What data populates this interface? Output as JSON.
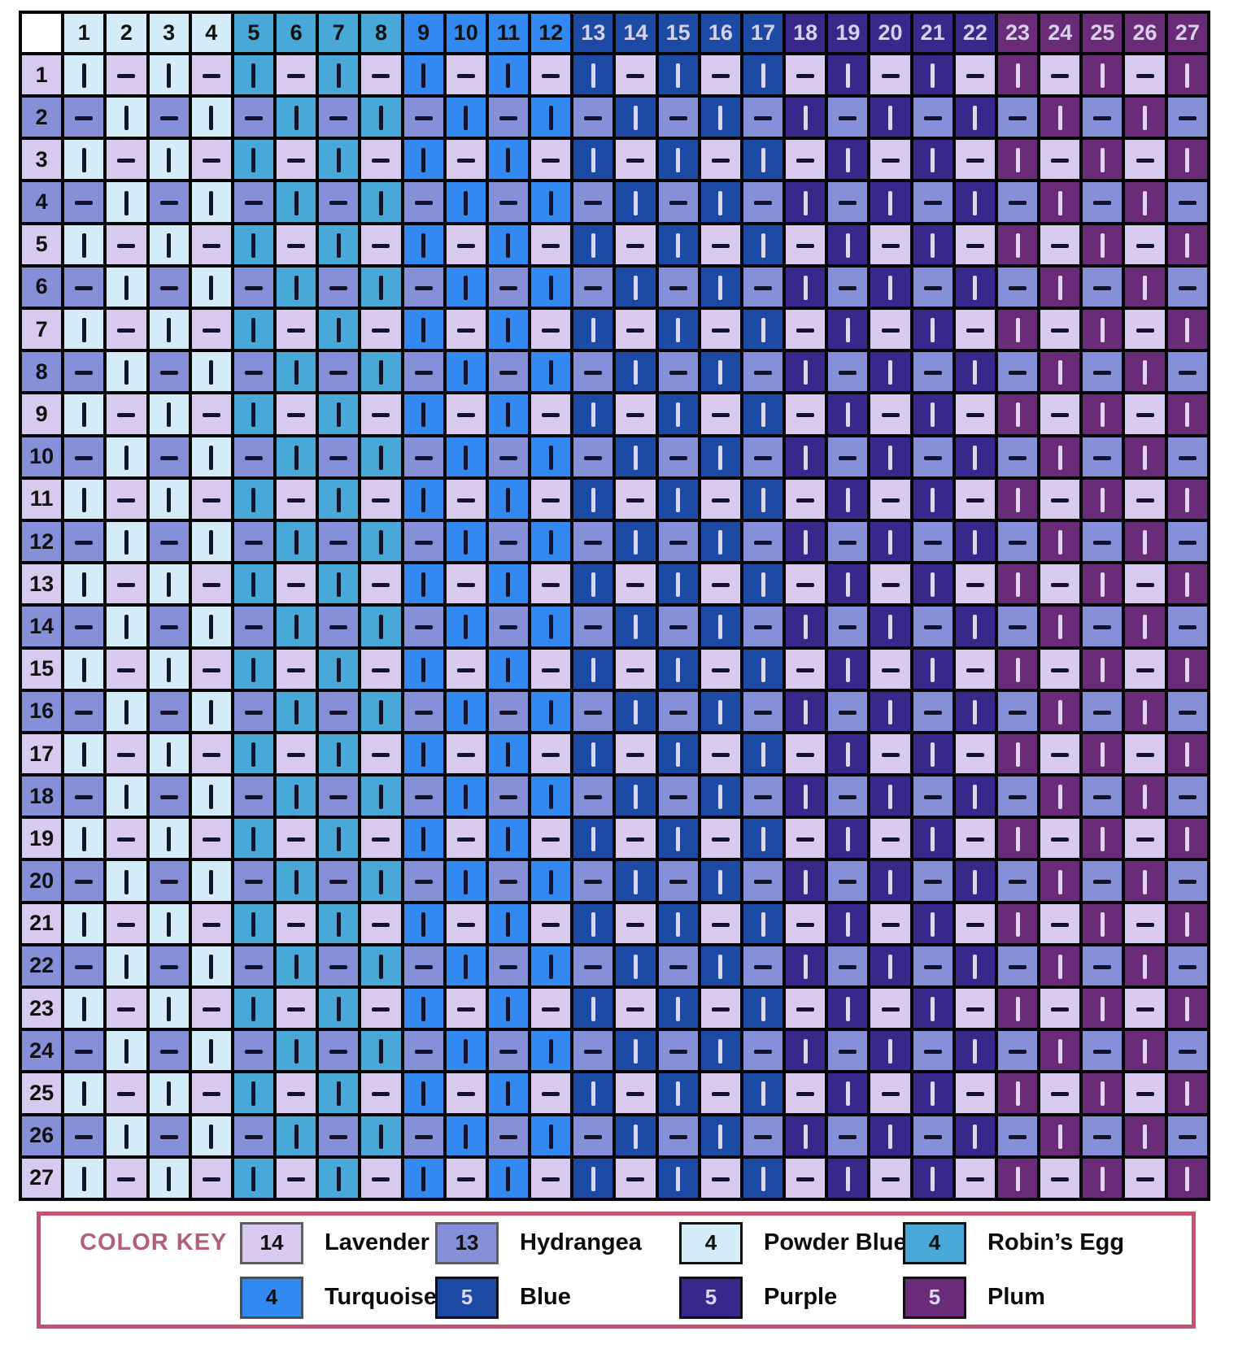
{
  "palette": {
    "lavender": "#d8caee",
    "hydrangea": "#8690d8",
    "powder_blue": "#d4ecf8",
    "robins_egg": "#48a8d8",
    "turquoise": "#3389f2",
    "blue": "#1d4aa5",
    "purple": "#38288c",
    "plum": "#6a2c78",
    "symbol_dark": "#12122a",
    "symbol_light": "#dcd6ee",
    "header_light_text": "#d6d0e8",
    "grid_line": "#050505",
    "key_border": "#c95070",
    "key_title_color": "#b06078"
  },
  "chart_data": {
    "type": "heatmap",
    "description": "27x27 knit/purl colorwork stitch chart. 'I' (knit, vertical bar) cells are filled with the column color; '-' (purl, horizontal dash) cells are filled with lavender on odd rows and hydrangea on even rows, forming a checkerboard.",
    "columns": [
      1,
      2,
      3,
      4,
      5,
      6,
      7,
      8,
      9,
      10,
      11,
      12,
      13,
      14,
      15,
      16,
      17,
      18,
      19,
      20,
      21,
      22,
      23,
      24,
      25,
      26,
      27
    ],
    "rows": [
      1,
      2,
      3,
      4,
      5,
      6,
      7,
      8,
      9,
      10,
      11,
      12,
      13,
      14,
      15,
      16,
      17,
      18,
      19,
      20,
      21,
      22,
      23,
      24,
      25,
      26,
      27
    ],
    "column_color_groups": [
      {
        "columns": "1-4",
        "color": "powder_blue"
      },
      {
        "columns": "5-8",
        "color": "robins_egg"
      },
      {
        "columns": "9-12",
        "color": "turquoise"
      },
      {
        "columns": "13-17",
        "color": "blue"
      },
      {
        "columns": "18-22",
        "color": "purple"
      },
      {
        "columns": "23-27",
        "color": "plum"
      }
    ],
    "column_colors": [
      "powder_blue",
      "powder_blue",
      "powder_blue",
      "powder_blue",
      "robins_egg",
      "robins_egg",
      "robins_egg",
      "robins_egg",
      "turquoise",
      "turquoise",
      "turquoise",
      "turquoise",
      "blue",
      "blue",
      "blue",
      "blue",
      "blue",
      "purple",
      "purple",
      "purple",
      "purple",
      "purple",
      "plum",
      "plum",
      "plum",
      "plum",
      "plum"
    ],
    "row_purl_colors": [
      "lavender",
      "hydrangea",
      "lavender",
      "hydrangea",
      "lavender",
      "hydrangea",
      "lavender",
      "hydrangea",
      "lavender",
      "hydrangea",
      "lavender",
      "hydrangea",
      "lavender",
      "hydrangea",
      "lavender",
      "hydrangea",
      "lavender",
      "hydrangea",
      "lavender",
      "hydrangea",
      "lavender",
      "hydrangea",
      "lavender",
      "hydrangea",
      "lavender",
      "hydrangea",
      "lavender"
    ],
    "dark_colors": [
      "blue",
      "purple",
      "plum"
    ],
    "symbols": {
      "knit": "I",
      "purl": "–"
    },
    "cells": [
      "I-I-I-I-I-I-I-I-I-I-I-I-I-I",
      "-I-I-I-I-I-I-I-I-I-I-I-I-I-",
      "I-I-I-I-I-I-I-I-I-I-I-I-I-I",
      "-I-I-I-I-I-I-I-I-I-I-I-I-I-",
      "I-I-I-I-I-I-I-I-I-I-I-I-I-I",
      "-I-I-I-I-I-I-I-I-I-I-I-I-I-",
      "I-I-I-I-I-I-I-I-I-I-I-I-I-I",
      "-I-I-I-I-I-I-I-I-I-I-I-I-I-",
      "I-I-I-I-I-I-I-I-I-I-I-I-I-I",
      "-I-I-I-I-I-I-I-I-I-I-I-I-I-",
      "I-I-I-I-I-I-I-I-I-I-I-I-I-I",
      "-I-I-I-I-I-I-I-I-I-I-I-I-I-",
      "I-I-I-I-I-I-I-I-I-I-I-I-I-I",
      "-I-I-I-I-I-I-I-I-I-I-I-I-I-",
      "I-I-I-I-I-I-I-I-I-I-I-I-I-I",
      "-I-I-I-I-I-I-I-I-I-I-I-I-I-",
      "I-I-I-I-I-I-I-I-I-I-I-I-I-I",
      "-I-I-I-I-I-I-I-I-I-I-I-I-I-",
      "I-I-I-I-I-I-I-I-I-I-I-I-I-I",
      "-I-I-I-I-I-I-I-I-I-I-I-I-I-",
      "I-I-I-I-I-I-I-I-I-I-I-I-I-I",
      "-I-I-I-I-I-I-I-I-I-I-I-I-I-",
      "I-I-I-I-I-I-I-I-I-I-I-I-I-I",
      "-I-I-I-I-I-I-I-I-I-I-I-I-I-",
      "I-I-I-I-I-I-I-I-I-I-I-I-I-I",
      "-I-I-I-I-I-I-I-I-I-I-I-I-I-",
      "I-I-I-I-I-I-I-I-I-I-I-I-I-I"
    ]
  },
  "color_key": {
    "title": "COLOR KEY",
    "entries": [
      {
        "count": "14",
        "name": "Lavender",
        "color": "lavender",
        "number_text": "dark",
        "swatch_border": "#5e5e66"
      },
      {
        "count": "13",
        "name": "Hydrangea",
        "color": "hydrangea",
        "number_text": "dark",
        "swatch_border": "#5e5e66"
      },
      {
        "count": "4",
        "name": "Powder Blue",
        "color": "powder_blue",
        "number_text": "dark",
        "swatch_border": "#111111"
      },
      {
        "count": "4",
        "name": "Robin’s Egg",
        "color": "robins_egg",
        "number_text": "dark",
        "swatch_border": "#111111"
      },
      {
        "count": "4",
        "name": "Turquoise",
        "color": "turquoise",
        "number_text": "dark",
        "swatch_border": "#4a4e55"
      },
      {
        "count": "5",
        "name": "Blue",
        "color": "blue",
        "number_text": "light",
        "swatch_border": "#111111"
      },
      {
        "count": "5",
        "name": "Purple",
        "color": "purple",
        "number_text": "light",
        "swatch_border": "#111111"
      },
      {
        "count": "5",
        "name": "Plum",
        "color": "plum",
        "number_text": "light",
        "swatch_border": "#111111"
      }
    ]
  }
}
